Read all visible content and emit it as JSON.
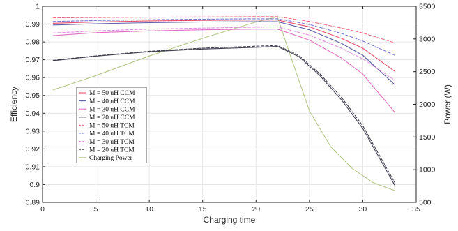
{
  "chart_data": {
    "type": "line",
    "xlabel": "Charging time",
    "ylabel_left": "Efficiency",
    "ylabel_right": "Power (W)",
    "xlim": [
      0,
      35
    ],
    "ylim_left": [
      0.89,
      1.0
    ],
    "ylim_right": [
      500,
      3500
    ],
    "xticks": [
      "0",
      "5",
      "10",
      "15",
      "20",
      "25",
      "30",
      "35"
    ],
    "yticks_left": [
      "0.89",
      "0.9",
      "0.91",
      "0.92",
      "0.93",
      "0.94",
      "0.95",
      "0.96",
      "0.97",
      "0.98",
      "0.99",
      "1"
    ],
    "yticks_right": [
      "500",
      "1000",
      "1500",
      "2000",
      "2500",
      "3000",
      "3500"
    ],
    "grid": true,
    "legend_position": "lower-left",
    "series": [
      {
        "name": "M = 50 uH CCM",
        "color": "#e8506e",
        "dash": false,
        "axis": "left",
        "x": [
          1,
          5,
          10,
          15,
          20,
          22,
          25,
          28,
          30,
          33
        ],
        "y": [
          0.9905,
          0.9912,
          0.9918,
          0.9921,
          0.9923,
          0.9923,
          0.9885,
          0.982,
          0.9765,
          0.9635
        ]
      },
      {
        "name": "M = 40 uH CCM",
        "color": "#5b5fa3",
        "dash": false,
        "axis": "left",
        "x": [
          1,
          5,
          10,
          15,
          20,
          22,
          25,
          28,
          30,
          33
        ],
        "y": [
          0.9895,
          0.9902,
          0.9908,
          0.9912,
          0.9914,
          0.9914,
          0.9868,
          0.9792,
          0.9725,
          0.956
        ]
      },
      {
        "name": "M = 30 uH CCM",
        "color": "#e070c0",
        "dash": false,
        "axis": "left",
        "x": [
          1,
          5,
          10,
          15,
          20,
          22,
          25,
          28,
          30,
          33
        ],
        "y": [
          0.9835,
          0.9852,
          0.9862,
          0.9868,
          0.9872,
          0.9872,
          0.981,
          0.971,
          0.962,
          0.9405
        ]
      },
      {
        "name": "M = 20 uH CCM",
        "color": "#404050",
        "dash": false,
        "axis": "left",
        "x": [
          1,
          5,
          10,
          15,
          20,
          22,
          24,
          26,
          28,
          30,
          33
        ],
        "y": [
          0.9695,
          0.972,
          0.9745,
          0.976,
          0.977,
          0.9775,
          0.9718,
          0.961,
          0.9475,
          0.9315,
          0.8995
        ]
      },
      {
        "name": "M = 50 uH TCM",
        "color": "#f07088",
        "dash": true,
        "axis": "left",
        "x": [
          1,
          5,
          10,
          15,
          20,
          22,
          25,
          28,
          30,
          33
        ],
        "y": [
          0.9935,
          0.9937,
          0.9939,
          0.994,
          0.9942,
          0.9942,
          0.9915,
          0.9878,
          0.985,
          0.9795
        ]
      },
      {
        "name": "M = 40 uH TCM",
        "color": "#7a7ad8",
        "dash": true,
        "axis": "left",
        "x": [
          1,
          5,
          10,
          15,
          20,
          22,
          25,
          28,
          30,
          33
        ],
        "y": [
          0.9915,
          0.992,
          0.9925,
          0.9928,
          0.993,
          0.993,
          0.9898,
          0.9848,
          0.9805,
          0.9725
        ]
      },
      {
        "name": "M = 30 uH TCM",
        "color": "#e090e0",
        "dash": true,
        "axis": "left",
        "x": [
          1,
          5,
          10,
          15,
          20,
          22,
          25,
          28,
          30,
          33
        ],
        "y": [
          0.985,
          0.9862,
          0.9872,
          0.9878,
          0.9883,
          0.9885,
          0.9838,
          0.9765,
          0.9705,
          0.9585
        ]
      },
      {
        "name": "M = 20 uH TCM",
        "color": "#404050",
        "dash": true,
        "axis": "left",
        "x": [
          1,
          5,
          10,
          15,
          20,
          22,
          24,
          26,
          28,
          30,
          33
        ],
        "y": [
          0.9697,
          0.9722,
          0.9748,
          0.9765,
          0.9776,
          0.978,
          0.9725,
          0.962,
          0.949,
          0.933,
          0.901
        ]
      },
      {
        "name": "Charging Power",
        "color": "#b5c788",
        "dash": false,
        "axis": "right",
        "x": [
          1,
          5,
          10,
          15,
          20,
          22,
          23,
          25,
          27,
          29,
          31,
          33
        ],
        "y": [
          2220,
          2440,
          2740,
          3010,
          3260,
          3340,
          2850,
          1900,
          1350,
          1020,
          800,
          680
        ]
      }
    ]
  }
}
